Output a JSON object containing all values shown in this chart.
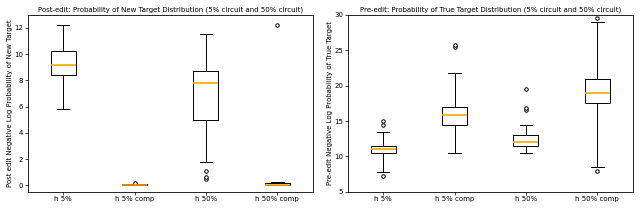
{
  "left_title": "Post-edit: Probability of New Target Distribution (5% circuit and 50% circuit)",
  "right_title": "Pre-edit: Probability of True Target Distribution (5% circuit and 50% circuit)",
  "left_ylabel": "Post edit Negative Log Probability of New Target",
  "right_ylabel": "Pre-edit Negative Log Probability of True Target",
  "left_categories": [
    "h 5%",
    "h 5% comp",
    "h 50%",
    "h 50% comp"
  ],
  "right_categories": [
    "h 5%",
    "h 5% comp",
    "h 50%",
    "h 50% comp"
  ],
  "left_ylim": [
    -0.5,
    13
  ],
  "right_ylim": [
    5,
    30
  ],
  "left_yticks": [
    0,
    2,
    4,
    6,
    8,
    10,
    12
  ],
  "right_yticks": [
    5,
    10,
    15,
    20,
    25,
    30
  ],
  "orange_color": "#FFA500",
  "left_boxes": [
    {
      "q1": 8.4,
      "median": 9.2,
      "q3": 10.2,
      "whislo": 5.8,
      "whishi": 12.2,
      "fliers": []
    },
    {
      "q1": 0.0,
      "median": 0.03,
      "q3": 0.07,
      "whislo": 0.0,
      "whishi": 0.12,
      "fliers": [
        0.17
      ]
    },
    {
      "q1": 5.0,
      "median": 7.8,
      "q3": 8.7,
      "whislo": 1.8,
      "whishi": 11.5,
      "fliers": [
        0.5,
        0.65,
        1.1
      ]
    },
    {
      "q1": 0.02,
      "median": 0.06,
      "q3": 0.15,
      "whislo": 0.0,
      "whishi": 0.22,
      "fliers": [
        12.2
      ]
    }
  ],
  "right_boxes": [
    {
      "q1": 10.5,
      "median": 11.0,
      "q3": 11.5,
      "whislo": 7.8,
      "whishi": 13.5,
      "fliers": [
        7.2,
        14.5,
        15.0
      ]
    },
    {
      "q1": 14.5,
      "median": 15.8,
      "q3": 17.0,
      "whislo": 10.5,
      "whishi": 21.8,
      "fliers": [
        25.4,
        25.7
      ]
    },
    {
      "q1": 11.5,
      "median": 12.0,
      "q3": 13.0,
      "whislo": 10.5,
      "whishi": 14.5,
      "fliers": [
        16.6,
        16.8,
        19.5
      ]
    },
    {
      "q1": 17.5,
      "median": 19.0,
      "q3": 21.0,
      "whislo": 8.5,
      "whishi": 29.0,
      "fliers": [
        8.0,
        29.5
      ]
    }
  ]
}
